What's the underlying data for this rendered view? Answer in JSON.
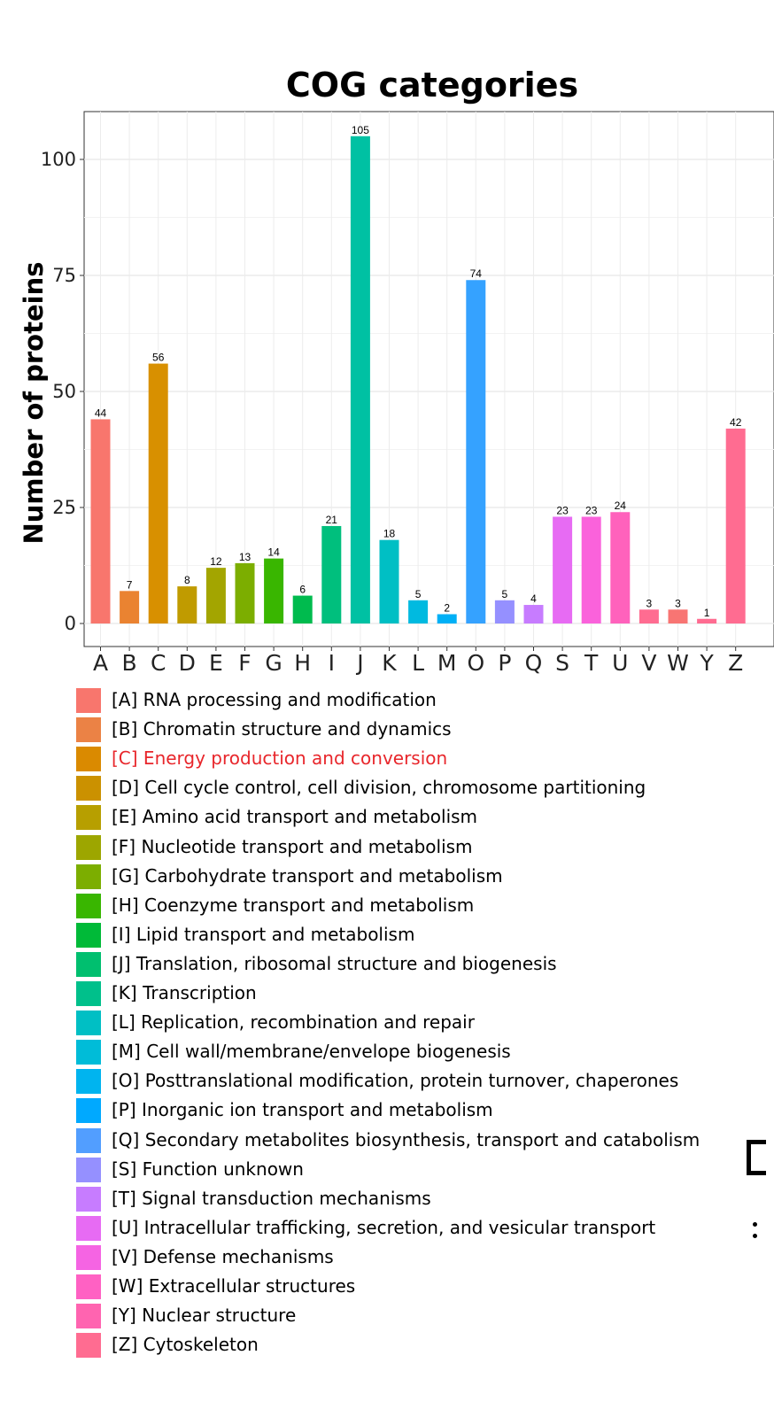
{
  "chart_data": {
    "type": "bar",
    "title": "COG categories",
    "xlabel": "",
    "ylabel": "Number of proteins",
    "ylim": [
      0,
      110
    ],
    "yticks": [
      0,
      25,
      50,
      75,
      100
    ],
    "grid": true,
    "categories": [
      "A",
      "B",
      "C",
      "D",
      "E",
      "F",
      "G",
      "H",
      "I",
      "J",
      "K",
      "L",
      "M",
      "O",
      "P",
      "Q",
      "S",
      "T",
      "U",
      "V",
      "W",
      "Y",
      "Z"
    ],
    "values": [
      44,
      7,
      56,
      8,
      12,
      13,
      14,
      6,
      21,
      105,
      18,
      5,
      2,
      74,
      5,
      4,
      23,
      23,
      24,
      3,
      3,
      1,
      42
    ],
    "colors": [
      "#F8766D",
      "#EA8331",
      "#D89000",
      "#C09B00",
      "#A3A500",
      "#7CAE00",
      "#39B600",
      "#00BB4E",
      "#00BF7D",
      "#00C1A3",
      "#00BFC4",
      "#00BAE0",
      "#00B0F6",
      "#35A2FF",
      "#9590FF",
      "#C77CFF",
      "#E76BF3",
      "#FA62DB",
      "#FF62BC",
      "#FF6C91",
      "#F87573",
      "#FF6C91",
      "#FF6C91"
    ],
    "legend_placement": "bottom",
    "legend": [
      {
        "label": "[A] RNA processing and modification",
        "color": "#F8766D"
      },
      {
        "label": "[B] Chromatin structure and dynamics",
        "color": "#EB8245"
      },
      {
        "label": "[C] Energy production and conversion",
        "color": "#DA8A00",
        "text_color": "#E8262B"
      },
      {
        "label": "[D] Cell cycle control, cell division, chromosome partitioning",
        "color": "#CB9100"
      },
      {
        "label": "[E] Amino acid transport and metabolism",
        "color": "#B79F00"
      },
      {
        "label": "[F] Nucleotide transport and metabolism",
        "color": "#9DA600"
      },
      {
        "label": "[G] Carbohydrate transport and metabolism",
        "color": "#7CAE00"
      },
      {
        "label": "[H] Coenzyme transport and metabolism",
        "color": "#39B600"
      },
      {
        "label": "[I] Lipid transport and metabolism",
        "color": "#00BA38"
      },
      {
        "label": "[J] Translation, ribosomal structure and biogenesis",
        "color": "#00BF6F"
      },
      {
        "label": "[K] Transcription",
        "color": "#00C08B"
      },
      {
        "label": "[L] Replication, recombination and repair",
        "color": "#00BFC4"
      },
      {
        "label": "[M] Cell wall/membrane/envelope biogenesis",
        "color": "#00BCD8"
      },
      {
        "label": "[O] Posttranslational modification, protein turnover, chaperones",
        "color": "#00B4EF"
      },
      {
        "label": "[P] Inorganic ion transport and metabolism",
        "color": "#00A9FF"
      },
      {
        "label": "[Q] Secondary metabolites biosynthesis, transport and catabolism",
        "color": "#529EFF"
      },
      {
        "label": "[S] Function unknown",
        "color": "#9590FF"
      },
      {
        "label": "[T] Signal transduction mechanisms",
        "color": "#C77CFF"
      },
      {
        "label": "[U] Intracellular trafficking, secretion, and vesicular transport",
        "color": "#E76BF3"
      },
      {
        "label": "[V] Defense mechanisms",
        "color": "#F564E3"
      },
      {
        "label": "[W] Extracellular structures",
        "color": "#FF61C3"
      },
      {
        "label": "[Y] Nuclear structure",
        "color": "#FF64B0"
      },
      {
        "label": "[Z] Cytoskeleton",
        "color": "#FF6C91"
      }
    ]
  }
}
